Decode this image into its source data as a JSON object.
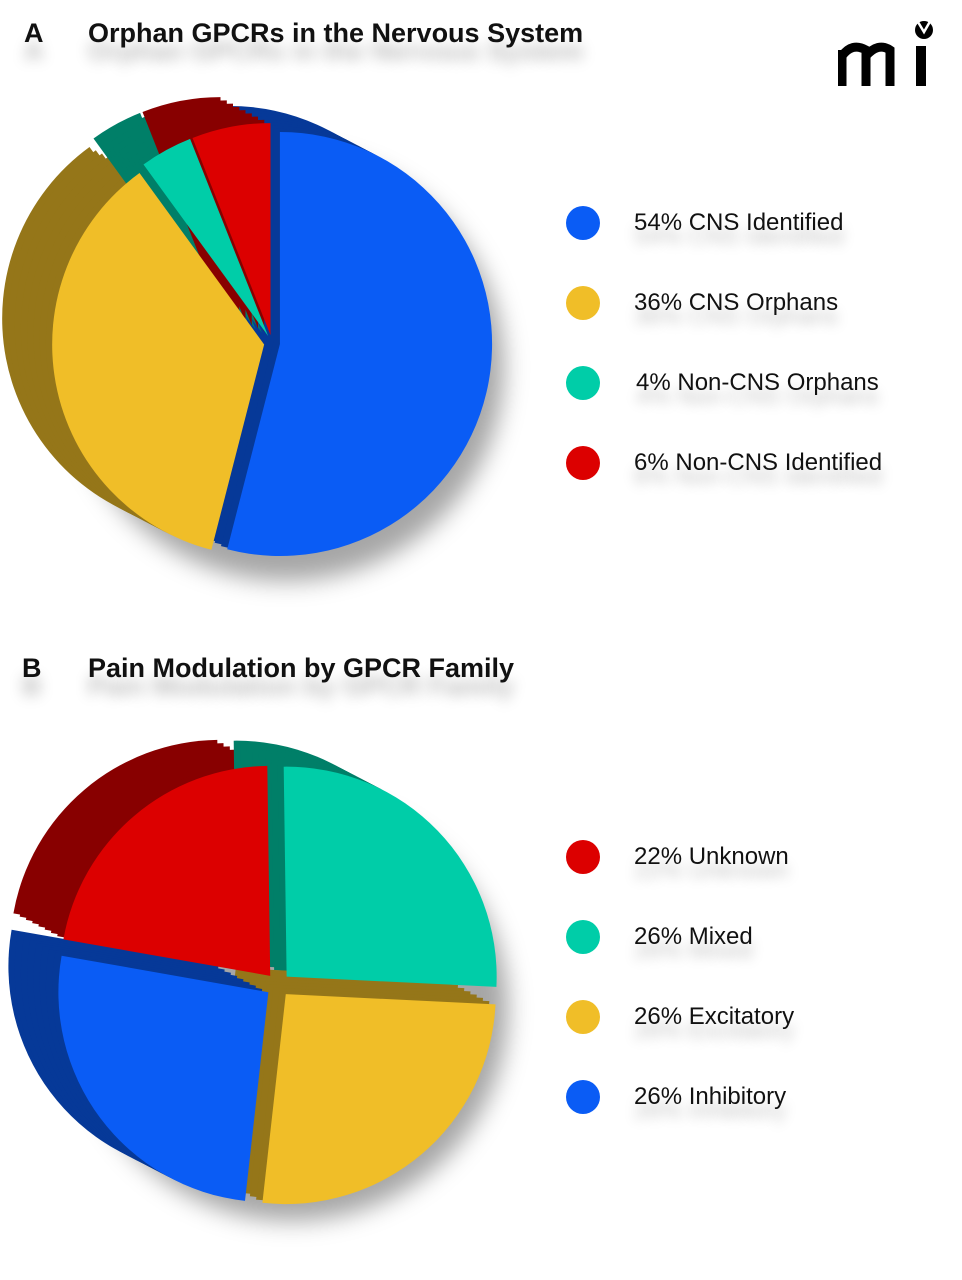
{
  "panels": [
    {
      "letter": "A",
      "title": "Orphan GPCRs in the Nervous System",
      "chart_data": {
        "type": "pie",
        "title": "Orphan GPCRs in the Nervous System",
        "legend_position": "right",
        "slices": [
          {
            "label": "54% CNS Identified",
            "value": 54,
            "color": "#0a5cf5"
          },
          {
            "label": "36% CNS Orphans",
            "value": 36,
            "color": "#f0be28"
          },
          {
            "label": "4% Non-CNS Orphans",
            "value": 4,
            "color": "#00cda8"
          },
          {
            "label": "6% Non-CNS Identified",
            "value": 6,
            "color": "#dc0000"
          }
        ]
      }
    },
    {
      "letter": "B",
      "title": "Pain Modulation by GPCR Family",
      "chart_data": {
        "type": "pie",
        "title": "Pain Modulation by GPCR Family",
        "legend_position": "right",
        "slices": [
          {
            "label": "22% Unknown",
            "value": 22,
            "color": "#dc0000"
          },
          {
            "label": "26% Mixed",
            "value": 26,
            "color": "#00cda8"
          },
          {
            "label": "26% Excitatory",
            "value": 26,
            "color": "#f0be28"
          },
          {
            "label": "26% Inhibitory",
            "value": 26,
            "color": "#0a5cf5"
          }
        ]
      }
    }
  ],
  "logo": {
    "text": "mi"
  }
}
